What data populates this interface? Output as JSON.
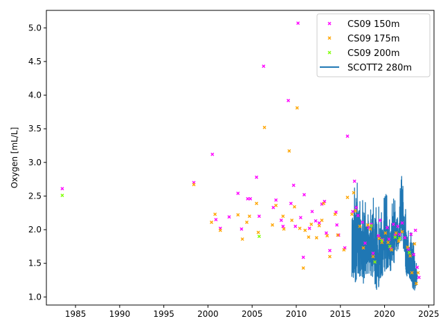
{
  "chart_data": {
    "type": "scatter",
    "xlabel": "",
    "ylabel": "Oxygen [mL/L]",
    "xlim": [
      1981.7,
      2025.6
    ],
    "ylim": [
      0.88,
      5.26
    ],
    "x_ticks": [
      1985,
      1990,
      1995,
      2000,
      2005,
      2010,
      2015,
      2020,
      2025
    ],
    "y_ticks": [
      1.0,
      1.5,
      2.0,
      2.5,
      3.0,
      3.5,
      4.0,
      4.5,
      5.0
    ],
    "x_tick_labels": [
      "1985",
      "1990",
      "1995",
      "2000",
      "2005",
      "2010",
      "2015",
      "2020",
      "2025"
    ],
    "y_tick_labels": [
      "1.0",
      "1.5",
      "2.0",
      "2.5",
      "3.0",
      "3.5",
      "4.0",
      "4.5",
      "5.0"
    ],
    "grid": false,
    "legend_position": "top-right",
    "series": [
      {
        "name": "CS09 150m",
        "kind": "scatter",
        "color": "#ff00ff",
        "marker": "x",
        "points": [
          [
            1983.5,
            2.61
          ],
          [
            1998.4,
            2.7
          ],
          [
            2000.5,
            3.12
          ],
          [
            2000.9,
            2.15
          ],
          [
            2001.4,
            2.02
          ],
          [
            2002.4,
            2.19
          ],
          [
            2003.4,
            2.54
          ],
          [
            2003.8,
            2.01
          ],
          [
            2004.5,
            2.46
          ],
          [
            2004.8,
            2.46
          ],
          [
            2005.5,
            2.78
          ],
          [
            2005.8,
            2.2
          ],
          [
            2006.3,
            4.43
          ],
          [
            2007.4,
            2.33
          ],
          [
            2007.7,
            2.44
          ],
          [
            2008.3,
            2.14
          ],
          [
            2008.5,
            2.05
          ],
          [
            2009.1,
            3.92
          ],
          [
            2009.4,
            2.39
          ],
          [
            2009.7,
            2.66
          ],
          [
            2009.9,
            2.05
          ],
          [
            2010.2,
            5.07
          ],
          [
            2010.5,
            2.18
          ],
          [
            2010.8,
            1.59
          ],
          [
            2010.9,
            2.52
          ],
          [
            2011.5,
            2.02
          ],
          [
            2011.8,
            2.27
          ],
          [
            2012.2,
            2.13
          ],
          [
            2012.6,
            2.1
          ],
          [
            2012.9,
            2.38
          ],
          [
            2013.2,
            2.42
          ],
          [
            2013.4,
            1.95
          ],
          [
            2013.8,
            1.69
          ],
          [
            2014.5,
            2.26
          ],
          [
            2014.6,
            2.07
          ],
          [
            2014.8,
            1.92
          ],
          [
            2015.5,
            1.73
          ],
          [
            2015.8,
            3.39
          ],
          [
            2016.4,
            2.27
          ],
          [
            2016.6,
            2.72
          ],
          [
            2016.8,
            2.33
          ],
          [
            2017.0,
            2.21
          ],
          [
            2017.5,
            2.11
          ],
          [
            2017.8,
            1.8
          ],
          [
            2018.2,
            2.03
          ],
          [
            2018.5,
            2.08
          ],
          [
            2018.7,
            1.65
          ],
          [
            2018.9,
            1.52
          ],
          [
            2019.3,
            1.91
          ],
          [
            2019.5,
            2.14
          ],
          [
            2019.8,
            1.85
          ],
          [
            2020.3,
            2.03
          ],
          [
            2020.5,
            1.86
          ],
          [
            2020.7,
            1.72
          ],
          [
            2021.0,
            2.08
          ],
          [
            2021.2,
            1.92
          ],
          [
            2021.5,
            2.05
          ],
          [
            2021.7,
            1.93
          ],
          [
            2022.0,
            2.1
          ],
          [
            2022.3,
            1.88
          ],
          [
            2022.7,
            1.71
          ],
          [
            2023.0,
            1.93
          ],
          [
            2023.3,
            1.63
          ],
          [
            2023.5,
            1.99
          ],
          [
            2023.7,
            1.44
          ],
          [
            2023.9,
            1.29
          ]
        ]
      },
      {
        "name": "CS09 175m",
        "kind": "scatter",
        "color": "#ffa500",
        "marker": "x",
        "points": [
          [
            1998.4,
            2.67
          ],
          [
            2000.4,
            2.11
          ],
          [
            2000.8,
            2.23
          ],
          [
            2001.4,
            1.99
          ],
          [
            2003.4,
            2.22
          ],
          [
            2003.9,
            1.86
          ],
          [
            2004.4,
            2.11
          ],
          [
            2004.7,
            2.2
          ],
          [
            2005.5,
            2.39
          ],
          [
            2005.7,
            1.96
          ],
          [
            2006.4,
            3.52
          ],
          [
            2007.3,
            2.07
          ],
          [
            2007.7,
            2.36
          ],
          [
            2008.5,
            2.2
          ],
          [
            2008.6,
            2.01
          ],
          [
            2009.2,
            3.17
          ],
          [
            2009.5,
            2.14
          ],
          [
            2009.8,
            2.34
          ],
          [
            2010.1,
            3.81
          ],
          [
            2010.4,
            2.02
          ],
          [
            2010.8,
            1.43
          ],
          [
            2011.0,
            1.99
          ],
          [
            2011.4,
            1.89
          ],
          [
            2011.7,
            2.08
          ],
          [
            2012.3,
            1.88
          ],
          [
            2012.6,
            2.06
          ],
          [
            2012.9,
            2.14
          ],
          [
            2013.1,
            2.39
          ],
          [
            2013.5,
            1.91
          ],
          [
            2013.8,
            1.6
          ],
          [
            2014.4,
            2.23
          ],
          [
            2014.7,
            1.92
          ],
          [
            2015.4,
            1.7
          ],
          [
            2015.8,
            2.48
          ],
          [
            2016.3,
            2.23
          ],
          [
            2016.5,
            2.55
          ],
          [
            2016.7,
            2.28
          ],
          [
            2017.2,
            2.05
          ],
          [
            2017.6,
            1.73
          ],
          [
            2018.1,
            2.07
          ],
          [
            2018.4,
            2.01
          ],
          [
            2018.7,
            1.6
          ],
          [
            2019.4,
            1.87
          ],
          [
            2019.7,
            1.81
          ],
          [
            2020.1,
            1.95
          ],
          [
            2020.4,
            1.81
          ],
          [
            2020.8,
            1.7
          ],
          [
            2021.3,
            1.95
          ],
          [
            2021.6,
            1.83
          ],
          [
            2022.0,
            1.97
          ],
          [
            2022.6,
            1.74
          ],
          [
            2022.9,
            1.61
          ],
          [
            2023.1,
            1.36
          ],
          [
            2023.4,
            1.79
          ],
          [
            2023.6,
            1.2
          ],
          [
            2023.8,
            1.36
          ]
        ]
      },
      {
        "name": "CS09 200m",
        "kind": "scatter",
        "color": "#7fff00",
        "marker": "x",
        "points": [
          [
            1983.5,
            2.51
          ],
          [
            2005.8,
            1.9
          ],
          [
            2018.5,
            2.06
          ],
          [
            2018.9,
            1.52
          ],
          [
            2019.7,
            1.84
          ],
          [
            2020.6,
            1.75
          ],
          [
            2021.2,
            1.89
          ],
          [
            2021.7,
            1.87
          ],
          [
            2022.8,
            1.66
          ]
        ]
      },
      {
        "name": "SCOTT2 280m",
        "kind": "line",
        "color": "#1f77b4",
        "x_start": 2016.3,
        "x_end": 2023.7,
        "y_min": 1.07,
        "y_max": 2.97,
        "envelope": [
          [
            2016.3,
            1.3,
            2.32
          ],
          [
            2016.6,
            1.2,
            2.62
          ],
          [
            2016.9,
            1.28,
            2.7
          ],
          [
            2017.3,
            1.32,
            2.34
          ],
          [
            2017.6,
            1.2,
            2.47
          ],
          [
            2017.9,
            1.35,
            2.38
          ],
          [
            2018.3,
            1.35,
            2.1
          ],
          [
            2018.6,
            1.3,
            2.55
          ],
          [
            2018.9,
            1.2,
            2.37
          ],
          [
            2019.2,
            1.07,
            2.28
          ],
          [
            2019.5,
            1.26,
            2.4
          ],
          [
            2019.8,
            1.33,
            2.1
          ],
          [
            2020.1,
            1.4,
            2.83
          ],
          [
            2020.4,
            1.45,
            2.2
          ],
          [
            2020.7,
            1.38,
            2.1
          ],
          [
            2021.0,
            1.46,
            2.62
          ],
          [
            2021.3,
            1.62,
            2.28
          ],
          [
            2021.6,
            1.74,
            2.1
          ],
          [
            2021.9,
            1.88,
            2.97
          ],
          [
            2022.2,
            1.68,
            2.43
          ],
          [
            2022.5,
            1.28,
            2.22
          ],
          [
            2022.8,
            1.31,
            1.84
          ],
          [
            2023.1,
            1.14,
            2.02
          ],
          [
            2023.4,
            1.1,
            1.7
          ],
          [
            2023.7,
            1.22,
            1.4
          ]
        ]
      }
    ]
  }
}
